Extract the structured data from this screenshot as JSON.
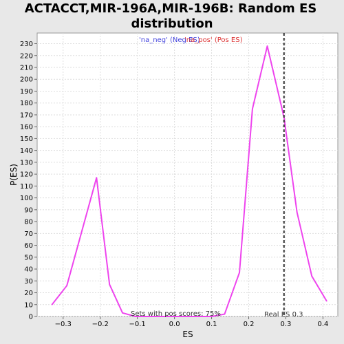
{
  "chart_data": {
    "type": "line",
    "title_line1": "ACTACCT,MIR-196A,MIR-196B: Random ES",
    "title_line2": "distribution",
    "xlabel": "ES",
    "ylabel": "P(ES)",
    "xlim": [
      -0.37,
      0.44
    ],
    "ylim": [
      0,
      239
    ],
    "x_ticks": [
      -0.3,
      -0.2,
      -0.1,
      0.0,
      0.1,
      0.2,
      0.3,
      0.4
    ],
    "x_tick_labels": [
      "−0.3",
      "−0.2",
      "−0.1",
      "0.0",
      "0.1",
      "0.2",
      "0.3",
      "0.4"
    ],
    "y_ticks": [
      0,
      10,
      20,
      30,
      40,
      50,
      60,
      70,
      80,
      90,
      100,
      110,
      120,
      130,
      140,
      150,
      160,
      170,
      180,
      190,
      200,
      210,
      220,
      230
    ],
    "grid": true,
    "legend": [
      {
        "label": "'na_neg' (Neg ES)",
        "color": "#4444dd"
      },
      {
        "label": "'na_pos' (Pos ES)",
        "color": "#dd3333"
      }
    ],
    "series": [
      {
        "color": "#ee44ee",
        "x": [
          -0.33,
          -0.29,
          -0.21,
          -0.175,
          -0.14,
          -0.105,
          0.0,
          0.1,
          0.135,
          0.175,
          0.21,
          0.25,
          0.295,
          0.33,
          0.37,
          0.41
        ],
        "y": [
          10,
          26,
          117,
          27,
          3,
          0,
          0,
          0,
          2,
          37,
          175,
          228,
          168,
          88,
          34,
          13
        ]
      }
    ],
    "real_es": 0.295,
    "real_es_label": "Real ES 0.3",
    "footnote": "Sets with pos scores: 75%"
  }
}
